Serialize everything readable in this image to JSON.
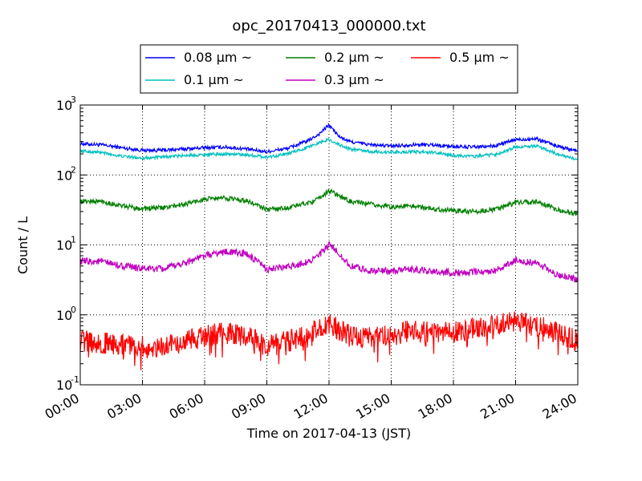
{
  "chart_data": {
    "type": "line",
    "title": "opc_20170413_000000.txt",
    "xlabel": "Time on 2017-04-13 (JST)",
    "ylabel": "Count / L",
    "x_unit": "hours",
    "xlim": [
      0,
      24
    ],
    "ylim": [
      0.1,
      1000
    ],
    "yscale": "log",
    "grid": true,
    "legend_position": "top-center",
    "x_ticks": [
      {
        "value": 0,
        "label": "00:00"
      },
      {
        "value": 3,
        "label": "03:00"
      },
      {
        "value": 6,
        "label": "06:00"
      },
      {
        "value": 9,
        "label": "09:00"
      },
      {
        "value": 12,
        "label": "12:00"
      },
      {
        "value": 15,
        "label": "15:00"
      },
      {
        "value": 18,
        "label": "18:00"
      },
      {
        "value": 21,
        "label": "21:00"
      },
      {
        "value": 24,
        "label": "24:00"
      }
    ],
    "y_ticks": [
      {
        "value": 0.1,
        "base": "10",
        "exp": "-1"
      },
      {
        "value": 1,
        "base": "10",
        "exp": "0"
      },
      {
        "value": 10,
        "base": "10",
        "exp": "1"
      },
      {
        "value": 100,
        "base": "10",
        "exp": "2"
      },
      {
        "value": 1000,
        "base": "10",
        "exp": "3"
      }
    ],
    "series": [
      {
        "name": "0.08 μm ~",
        "color": "#0000ff",
        "x": [
          0,
          1,
          2,
          3,
          4,
          5,
          6,
          7,
          8,
          9,
          10,
          11,
          11.5,
          12,
          12.5,
          13,
          14,
          15,
          16,
          17,
          18,
          19,
          20,
          21,
          22,
          23,
          24
        ],
        "y": [
          280,
          270,
          245,
          225,
          225,
          235,
          245,
          250,
          235,
          215,
          240,
          310,
          380,
          520,
          350,
          300,
          270,
          260,
          270,
          270,
          255,
          250,
          260,
          320,
          330,
          260,
          220
        ]
      },
      {
        "name": "0.1 μm ~",
        "color": "#00bfbf",
        "x": [
          0,
          1,
          2,
          3,
          4,
          5,
          6,
          7,
          8,
          9,
          10,
          11,
          11.5,
          12,
          12.5,
          13,
          14,
          15,
          16,
          17,
          18,
          19,
          20,
          21,
          22,
          23,
          24
        ],
        "y": [
          220,
          210,
          185,
          175,
          180,
          190,
          195,
          200,
          195,
          180,
          200,
          250,
          290,
          320,
          270,
          235,
          215,
          210,
          215,
          210,
          190,
          185,
          195,
          250,
          260,
          200,
          165
        ]
      },
      {
        "name": "0.2 μm ~",
        "color": "#007f00",
        "x": [
          0,
          1,
          2,
          3,
          4,
          5,
          6,
          7,
          8,
          9,
          10,
          11,
          11.5,
          12,
          12.5,
          13,
          14,
          15,
          16,
          17,
          18,
          19,
          20,
          21,
          22,
          23,
          24
        ],
        "y": [
          42,
          42,
          36,
          33,
          34,
          38,
          45,
          47,
          43,
          32,
          34,
          40,
          45,
          60,
          50,
          42,
          38,
          35,
          36,
          33,
          31,
          30,
          32,
          40,
          42,
          32,
          27
        ]
      },
      {
        "name": "0.3 μm ~",
        "color": "#bf00bf",
        "x": [
          0,
          1,
          2,
          3,
          4,
          5,
          6,
          7,
          8,
          9,
          10,
          11,
          11.5,
          12,
          12.5,
          13,
          14,
          15,
          16,
          17,
          18,
          19,
          20,
          21,
          22,
          23,
          24
        ],
        "y": [
          5.8,
          5.8,
          5.0,
          4.6,
          4.5,
          5.5,
          7.0,
          8.0,
          7.5,
          4.5,
          4.8,
          5.8,
          7.0,
          10.0,
          7.5,
          5.0,
          4.3,
          4.2,
          4.5,
          4.2,
          4.0,
          4.1,
          4.3,
          6.0,
          5.5,
          3.8,
          3.2
        ]
      },
      {
        "name": "0.5 μm ~",
        "color": "#ff0000",
        "x": [
          0,
          1,
          2,
          3,
          4,
          5,
          6,
          7,
          8,
          9,
          10,
          11,
          11.5,
          12,
          12.5,
          13,
          14,
          15,
          16,
          17,
          18,
          19,
          20,
          21,
          22,
          23,
          24
        ],
        "y": [
          0.42,
          0.4,
          0.38,
          0.35,
          0.35,
          0.4,
          0.5,
          0.55,
          0.5,
          0.35,
          0.42,
          0.55,
          0.6,
          0.75,
          0.62,
          0.5,
          0.48,
          0.5,
          0.6,
          0.55,
          0.55,
          0.65,
          0.7,
          0.8,
          0.7,
          0.55,
          0.42
        ]
      }
    ]
  }
}
